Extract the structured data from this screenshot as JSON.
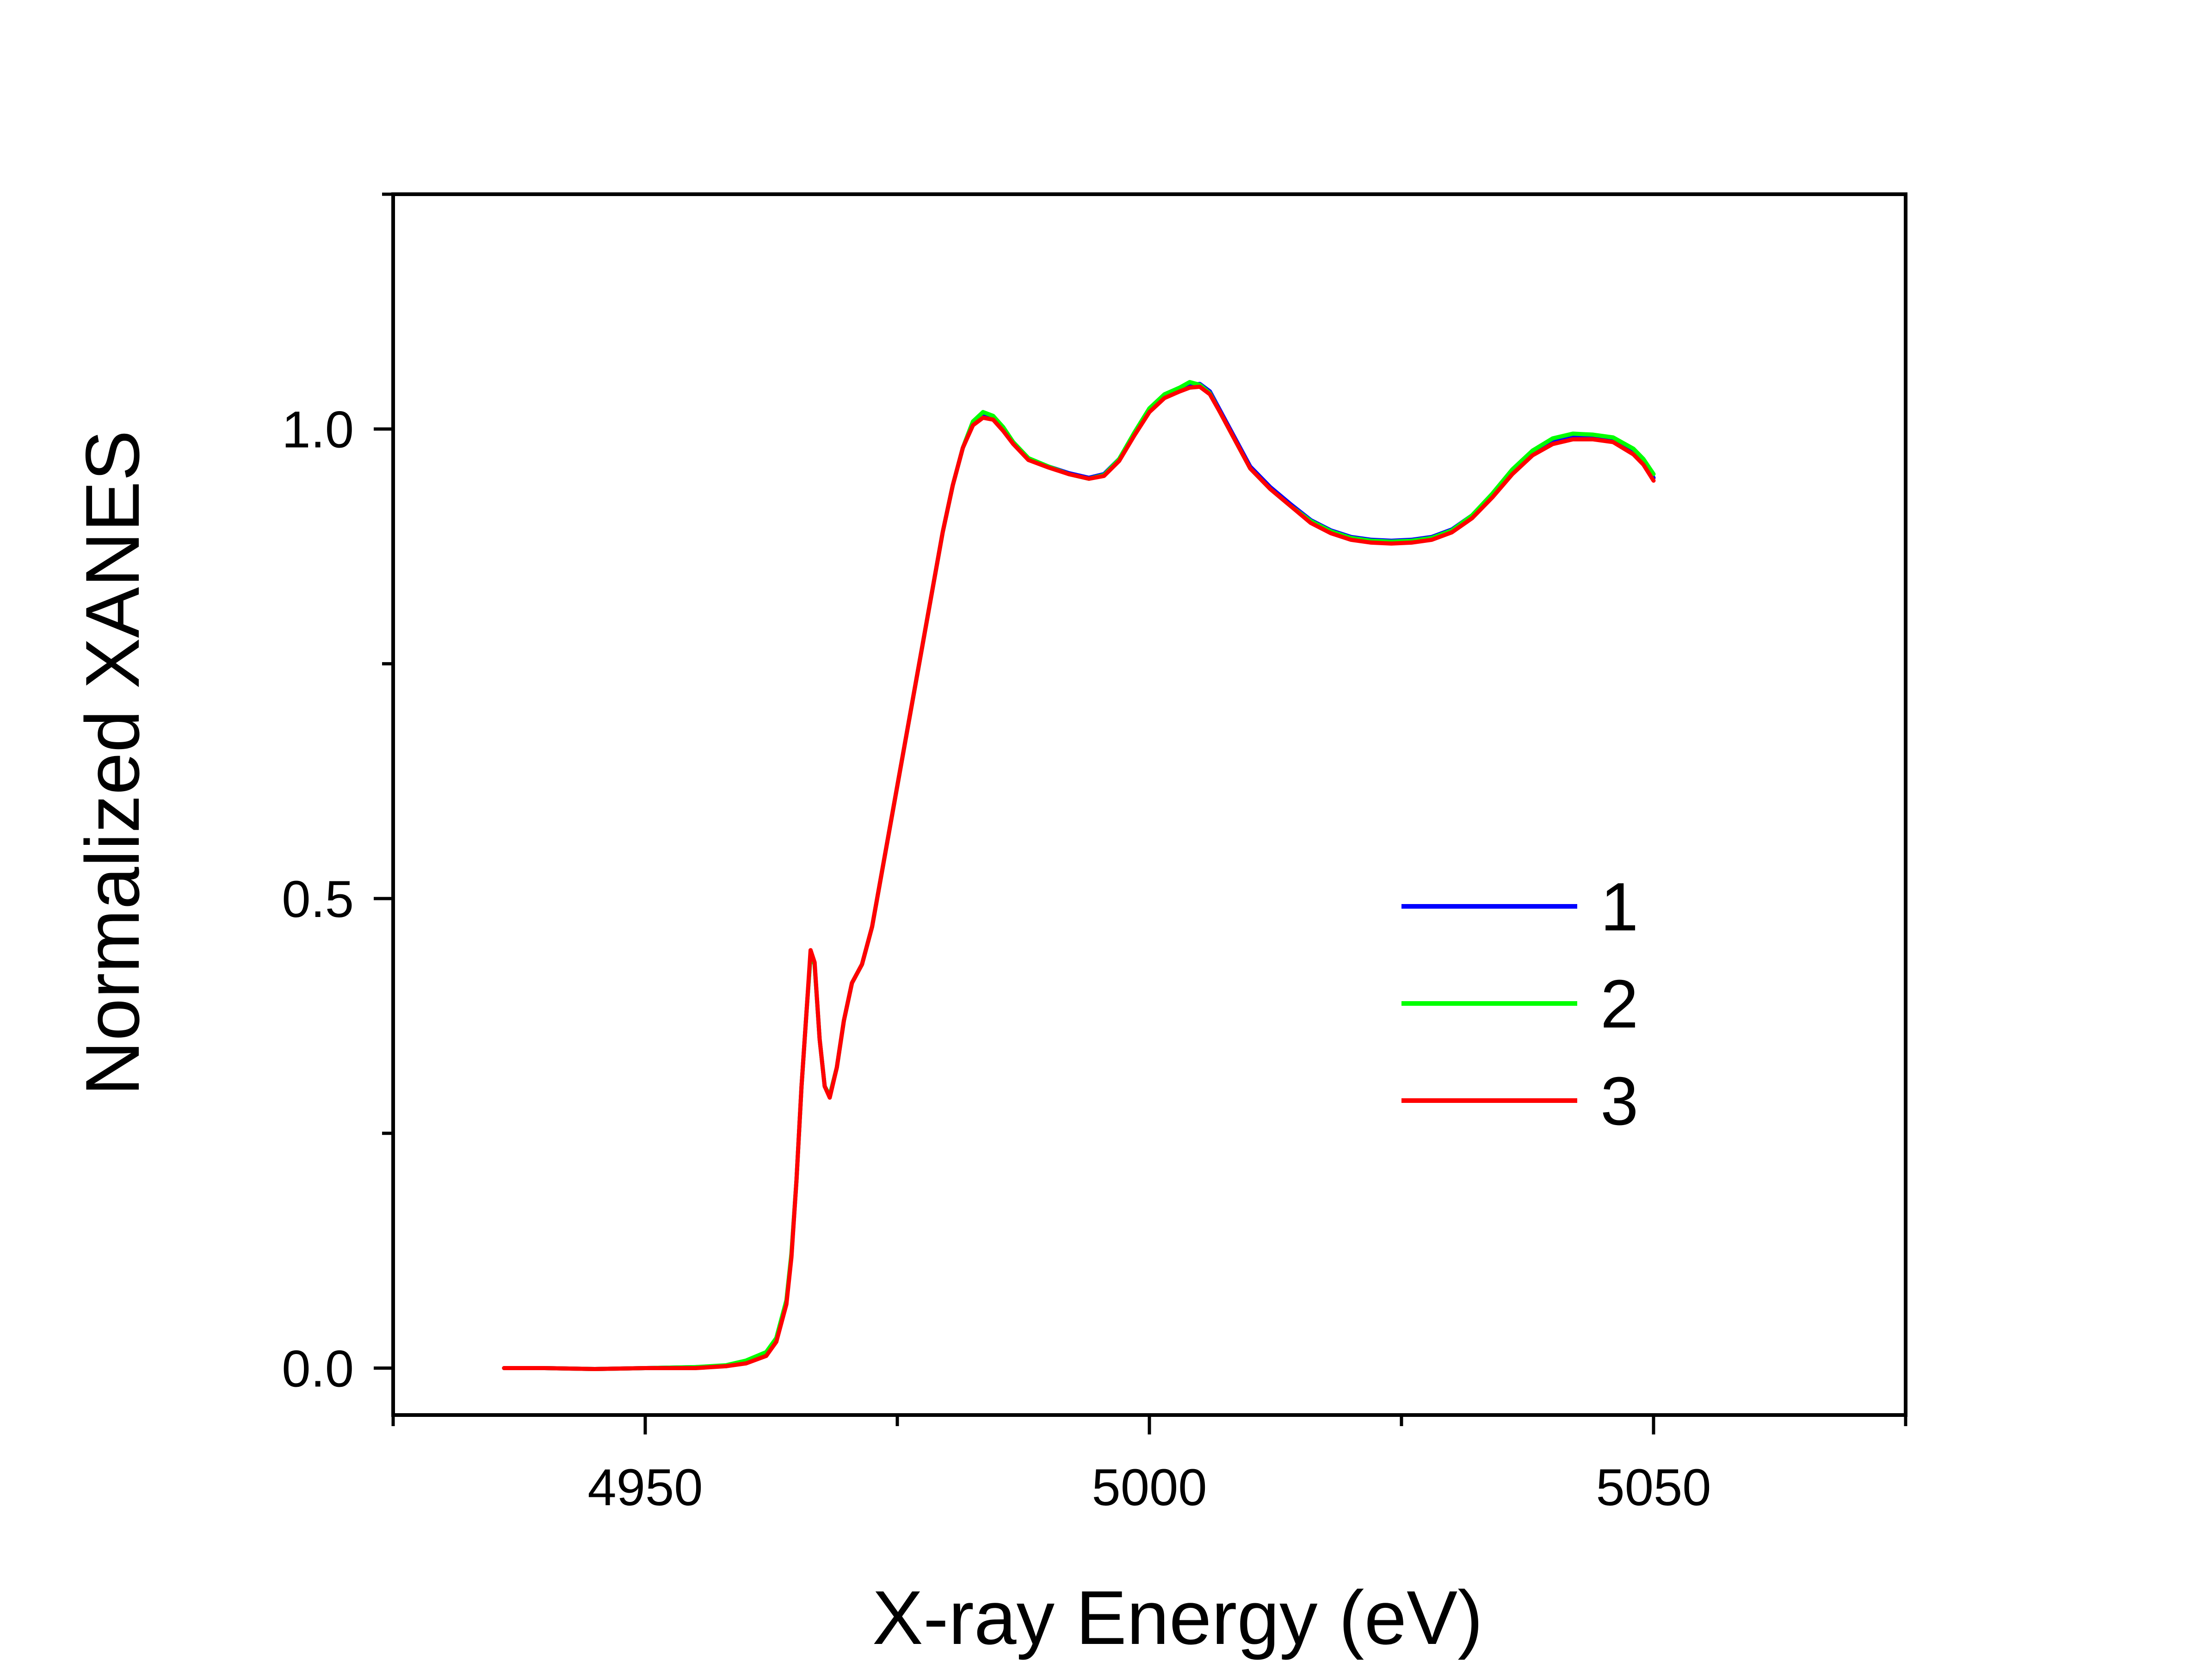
{
  "chart_data": {
    "type": "line",
    "title": "",
    "xlabel": "X-ray Energy (eV)",
    "ylabel": "Normalized XANES",
    "xlim": [
      4925,
      5075
    ],
    "ylim": [
      -0.05,
      1.25
    ],
    "x_major_ticks": [
      4950,
      5000,
      5050
    ],
    "x_major_tick_labels": [
      "4950",
      "5000",
      "5050"
    ],
    "x_minor_ticks": [
      4925,
      4975,
      5025,
      5075
    ],
    "y_major_ticks": [
      0.0,
      0.5,
      1.0
    ],
    "y_major_tick_labels": [
      "0.0",
      "0.5",
      "1.0"
    ],
    "y_minor_ticks": [
      0.25,
      0.75,
      1.25
    ],
    "grid": false,
    "legend": "right-center",
    "series": [
      {
        "name": "1",
        "color": "#0000ff",
        "x": [
          4936,
          4940,
          4945,
          4950,
          4955,
          4958,
          4960,
          4962,
          4963,
          4964,
          4964.5,
          4965,
          4965.5,
          4966,
          4966.4,
          4966.8,
          4967.3,
          4967.8,
          4968.3,
          4969,
          4969.7,
          4970.5,
          4971.5,
          4972.5,
          4973.5,
          4974.5,
          4975.5,
          4976.5,
          4977.5,
          4978.5,
          4979.5,
          4980.5,
          4981.5,
          4982.5,
          4983.5,
          4984.5,
          4985.5,
          4986.5,
          4988,
          4990,
          4992,
          4994,
          4995.5,
          4997,
          4998.5,
          5000,
          5001.5,
          5003,
          5004,
          5005,
          5006,
          5007,
          5008.5,
          5010,
          5012,
          5014,
          5016,
          5018,
          5020,
          5022,
          5024,
          5026,
          5028,
          5030,
          5032,
          5034,
          5036,
          5038,
          5040,
          5042,
          5044,
          5046,
          5048,
          5049,
          5050
        ],
        "values": [
          0.0,
          0.0,
          -0.001,
          0.0,
          0.001,
          0.002,
          0.006,
          0.015,
          0.03,
          0.07,
          0.12,
          0.2,
          0.3,
          0.38,
          0.44,
          0.43,
          0.35,
          0.3,
          0.29,
          0.32,
          0.37,
          0.41,
          0.43,
          0.47,
          0.53,
          0.59,
          0.65,
          0.71,
          0.77,
          0.83,
          0.89,
          0.94,
          0.98,
          1.005,
          1.015,
          1.012,
          1.0,
          0.985,
          0.968,
          0.96,
          0.953,
          0.948,
          0.952,
          0.968,
          0.995,
          1.02,
          1.035,
          1.042,
          1.047,
          1.048,
          1.04,
          1.02,
          0.99,
          0.96,
          0.938,
          0.92,
          0.903,
          0.892,
          0.885,
          0.882,
          0.881,
          0.882,
          0.885,
          0.893,
          0.908,
          0.93,
          0.955,
          0.975,
          0.988,
          0.993,
          0.993,
          0.99,
          0.977,
          0.965,
          0.948
        ]
      },
      {
        "name": "2",
        "color": "#00ff00",
        "x": [
          4936,
          4940,
          4945,
          4950,
          4955,
          4958,
          4960,
          4962,
          4963,
          4964,
          4964.5,
          4965,
          4965.5,
          4966,
          4966.4,
          4966.8,
          4967.3,
          4967.8,
          4968.3,
          4969,
          4969.7,
          4970.5,
          4971.5,
          4972.5,
          4973.5,
          4974.5,
          4975.5,
          4976.5,
          4977.5,
          4978.5,
          4979.5,
          4980.5,
          4981.5,
          4982.5,
          4983.5,
          4984.5,
          4985.5,
          4986.5,
          4988,
          4990,
          4992,
          4994,
          4995.5,
          4997,
          4998.5,
          5000,
          5001.5,
          5003,
          5004,
          5005,
          5006,
          5007,
          5008.5,
          5010,
          5012,
          5014,
          5016,
          5018,
          5020,
          5022,
          5024,
          5026,
          5028,
          5030,
          5032,
          5034,
          5036,
          5038,
          5040,
          5042,
          5044,
          5046,
          5048,
          5049,
          5050
        ],
        "values": [
          0.0,
          0.0,
          -0.001,
          0.0,
          0.001,
          0.003,
          0.008,
          0.017,
          0.032,
          0.072,
          0.122,
          0.2,
          0.3,
          0.38,
          0.44,
          0.43,
          0.35,
          0.3,
          0.29,
          0.32,
          0.37,
          0.41,
          0.43,
          0.47,
          0.53,
          0.59,
          0.65,
          0.71,
          0.77,
          0.83,
          0.89,
          0.94,
          0.98,
          1.008,
          1.018,
          1.014,
          1.002,
          0.986,
          0.969,
          0.96,
          0.952,
          0.947,
          0.951,
          0.968,
          0.996,
          1.022,
          1.037,
          1.044,
          1.05,
          1.047,
          1.038,
          1.018,
          0.988,
          0.958,
          0.936,
          0.918,
          0.902,
          0.891,
          0.884,
          0.881,
          0.88,
          0.881,
          0.884,
          0.892,
          0.908,
          0.931,
          0.957,
          0.977,
          0.99,
          0.995,
          0.994,
          0.991,
          0.979,
          0.968,
          0.952
        ]
      },
      {
        "name": "3",
        "color": "#ff0000",
        "x": [
          4936,
          4940,
          4945,
          4950,
          4955,
          4958,
          4960,
          4962,
          4963,
          4964,
          4964.5,
          4965,
          4965.5,
          4966,
          4966.4,
          4966.8,
          4967.3,
          4967.8,
          4968.3,
          4969,
          4969.7,
          4970.5,
          4971.5,
          4972.5,
          4973.5,
          4974.5,
          4975.5,
          4976.5,
          4977.5,
          4978.5,
          4979.5,
          4980.5,
          4981.5,
          4982.5,
          4983.5,
          4984.5,
          4985.5,
          4986.5,
          4988,
          4990,
          4992,
          4994,
          4995.5,
          4997,
          4998.5,
          5000,
          5001.5,
          5003,
          5004,
          5005,
          5006,
          5007,
          5008.5,
          5010,
          5012,
          5014,
          5016,
          5018,
          5020,
          5022,
          5024,
          5026,
          5028,
          5030,
          5032,
          5034,
          5036,
          5038,
          5040,
          5042,
          5044,
          5046,
          5048,
          5049,
          5050
        ],
        "values": [
          0.0,
          0.0,
          -0.001,
          0.0,
          0.0,
          0.002,
          0.005,
          0.013,
          0.028,
          0.068,
          0.118,
          0.2,
          0.3,
          0.38,
          0.445,
          0.432,
          0.35,
          0.3,
          0.288,
          0.32,
          0.37,
          0.41,
          0.43,
          0.47,
          0.53,
          0.59,
          0.65,
          0.71,
          0.77,
          0.83,
          0.89,
          0.94,
          0.98,
          1.004,
          1.012,
          1.01,
          0.998,
          0.984,
          0.967,
          0.959,
          0.952,
          0.947,
          0.95,
          0.966,
          0.993,
          1.018,
          1.033,
          1.04,
          1.044,
          1.045,
          1.037,
          1.018,
          0.988,
          0.958,
          0.936,
          0.918,
          0.9,
          0.889,
          0.882,
          0.879,
          0.878,
          0.879,
          0.882,
          0.89,
          0.905,
          0.927,
          0.952,
          0.972,
          0.984,
          0.989,
          0.989,
          0.986,
          0.973,
          0.962,
          0.945
        ]
      }
    ]
  }
}
